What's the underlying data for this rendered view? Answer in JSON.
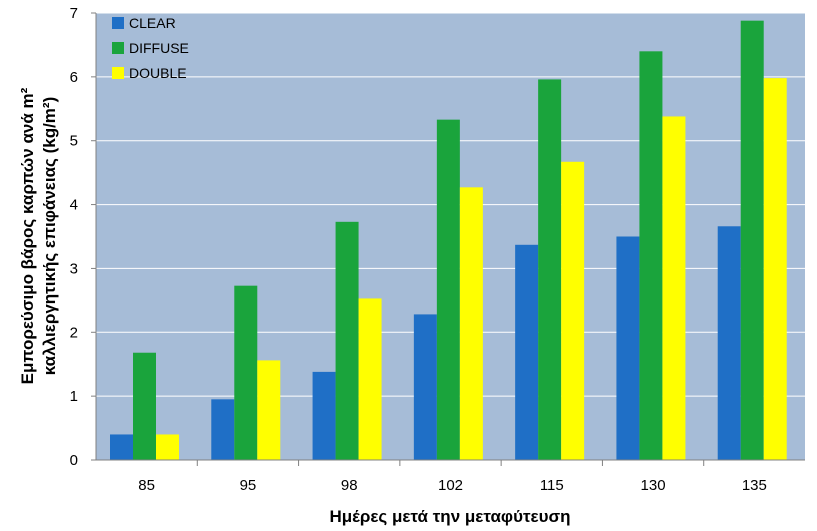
{
  "chart_data": {
    "type": "bar",
    "categories": [
      "85",
      "95",
      "98",
      "102",
      "115",
      "130",
      "135"
    ],
    "series": [
      {
        "name": "CLEAR",
        "color": "#1f6fc6",
        "values": [
          0.4,
          0.95,
          1.38,
          2.28,
          3.37,
          3.5,
          3.66
        ]
      },
      {
        "name": "DIFFUSE",
        "color": "#1aa43c",
        "values": [
          1.68,
          2.73,
          3.73,
          5.33,
          5.96,
          6.4,
          6.88
        ]
      },
      {
        "name": "DOUBLE",
        "color": "#ffff00",
        "values": [
          0.4,
          1.56,
          2.53,
          4.27,
          4.67,
          5.38,
          5.98
        ]
      }
    ],
    "xlabel": "Ημέρες μετά την μεταφύτευση",
    "ylabel_line1": "Εμπορεύσιμο βάρος καρπών ανά m²",
    "ylabel_line2": "καλλιεργητικής επιφάνειας (kg/m²)",
    "ylim": [
      0,
      7
    ],
    "yticks": [
      "0",
      "1",
      "2",
      "3",
      "4",
      "5",
      "6",
      "7"
    ],
    "grid": true,
    "legend_position": "top-left",
    "plot_background": "#a6bcd7",
    "gridline_color": "#ffffff"
  }
}
